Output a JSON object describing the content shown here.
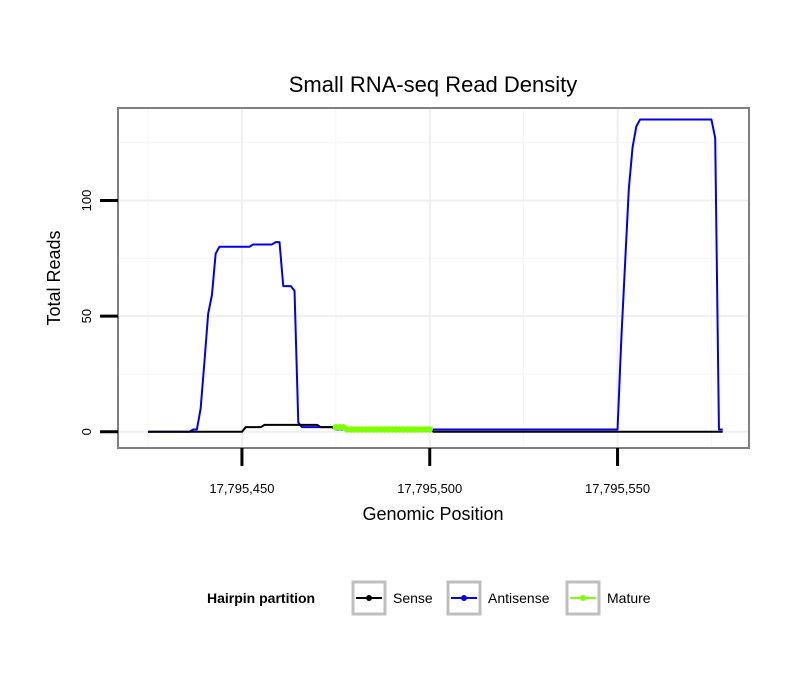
{
  "chart_data": {
    "type": "line",
    "title": "Small RNA-seq Read Density",
    "xlabel": "Genomic Position",
    "ylabel": "Total Reads",
    "xlim": [
      17795417,
      17795585
    ],
    "ylim": [
      -7,
      140
    ],
    "x_ticks": [
      17795450,
      17795500,
      17795550
    ],
    "x_tick_labels": [
      "17,795,450",
      "17,795,500",
      "17,795,550"
    ],
    "y_ticks": [
      0,
      50,
      100
    ],
    "y_tick_labels": [
      "0",
      "50",
      "100"
    ],
    "grid": true,
    "legend": {
      "title": "Hairpin partition",
      "position": "bottom",
      "entries": [
        "Sense",
        "Antisense",
        "Mature"
      ]
    },
    "series": [
      {
        "name": "Sense",
        "color": "#000000",
        "points": [
          [
            17795425,
            0
          ],
          [
            17795450,
            0
          ],
          [
            17795451,
            2
          ],
          [
            17795455,
            2
          ],
          [
            17795456,
            3
          ],
          [
            17795470,
            3
          ],
          [
            17795471,
            2
          ],
          [
            17795477,
            2
          ],
          [
            17795478,
            1
          ],
          [
            17795500,
            1
          ],
          [
            17795501,
            0
          ],
          [
            17795578,
            0
          ]
        ]
      },
      {
        "name": "Antisense",
        "color": "#0000ee",
        "points": [
          [
            17795425,
            0
          ],
          [
            17795436,
            0
          ],
          [
            17795437,
            1
          ],
          [
            17795438,
            1
          ],
          [
            17795439,
            10
          ],
          [
            17795440,
            30
          ],
          [
            17795441,
            51
          ],
          [
            17795442,
            59
          ],
          [
            17795443,
            77
          ],
          [
            17795444,
            80
          ],
          [
            17795452,
            80
          ],
          [
            17795453,
            81
          ],
          [
            17795458,
            81
          ],
          [
            17795459,
            82
          ],
          [
            17795460,
            82
          ],
          [
            17795461,
            63
          ],
          [
            17795463,
            63
          ],
          [
            17795464,
            61
          ],
          [
            17795465,
            4
          ],
          [
            17795466,
            2
          ],
          [
            17795474,
            2
          ],
          [
            17795475,
            1
          ],
          [
            17795550,
            1
          ],
          [
            17795551,
            40
          ],
          [
            17795553,
            105
          ],
          [
            17795554,
            123
          ],
          [
            17795555,
            132
          ],
          [
            17795556,
            135
          ],
          [
            17795575,
            135
          ],
          [
            17795576,
            127
          ],
          [
            17795577,
            1
          ],
          [
            17795578,
            1
          ]
        ]
      },
      {
        "name": "Mature",
        "color": "#7fff00",
        "points": [
          [
            17795475,
            2
          ],
          [
            17795477,
            2
          ],
          [
            17795478,
            1
          ],
          [
            17795500,
            1
          ]
        ]
      }
    ]
  }
}
